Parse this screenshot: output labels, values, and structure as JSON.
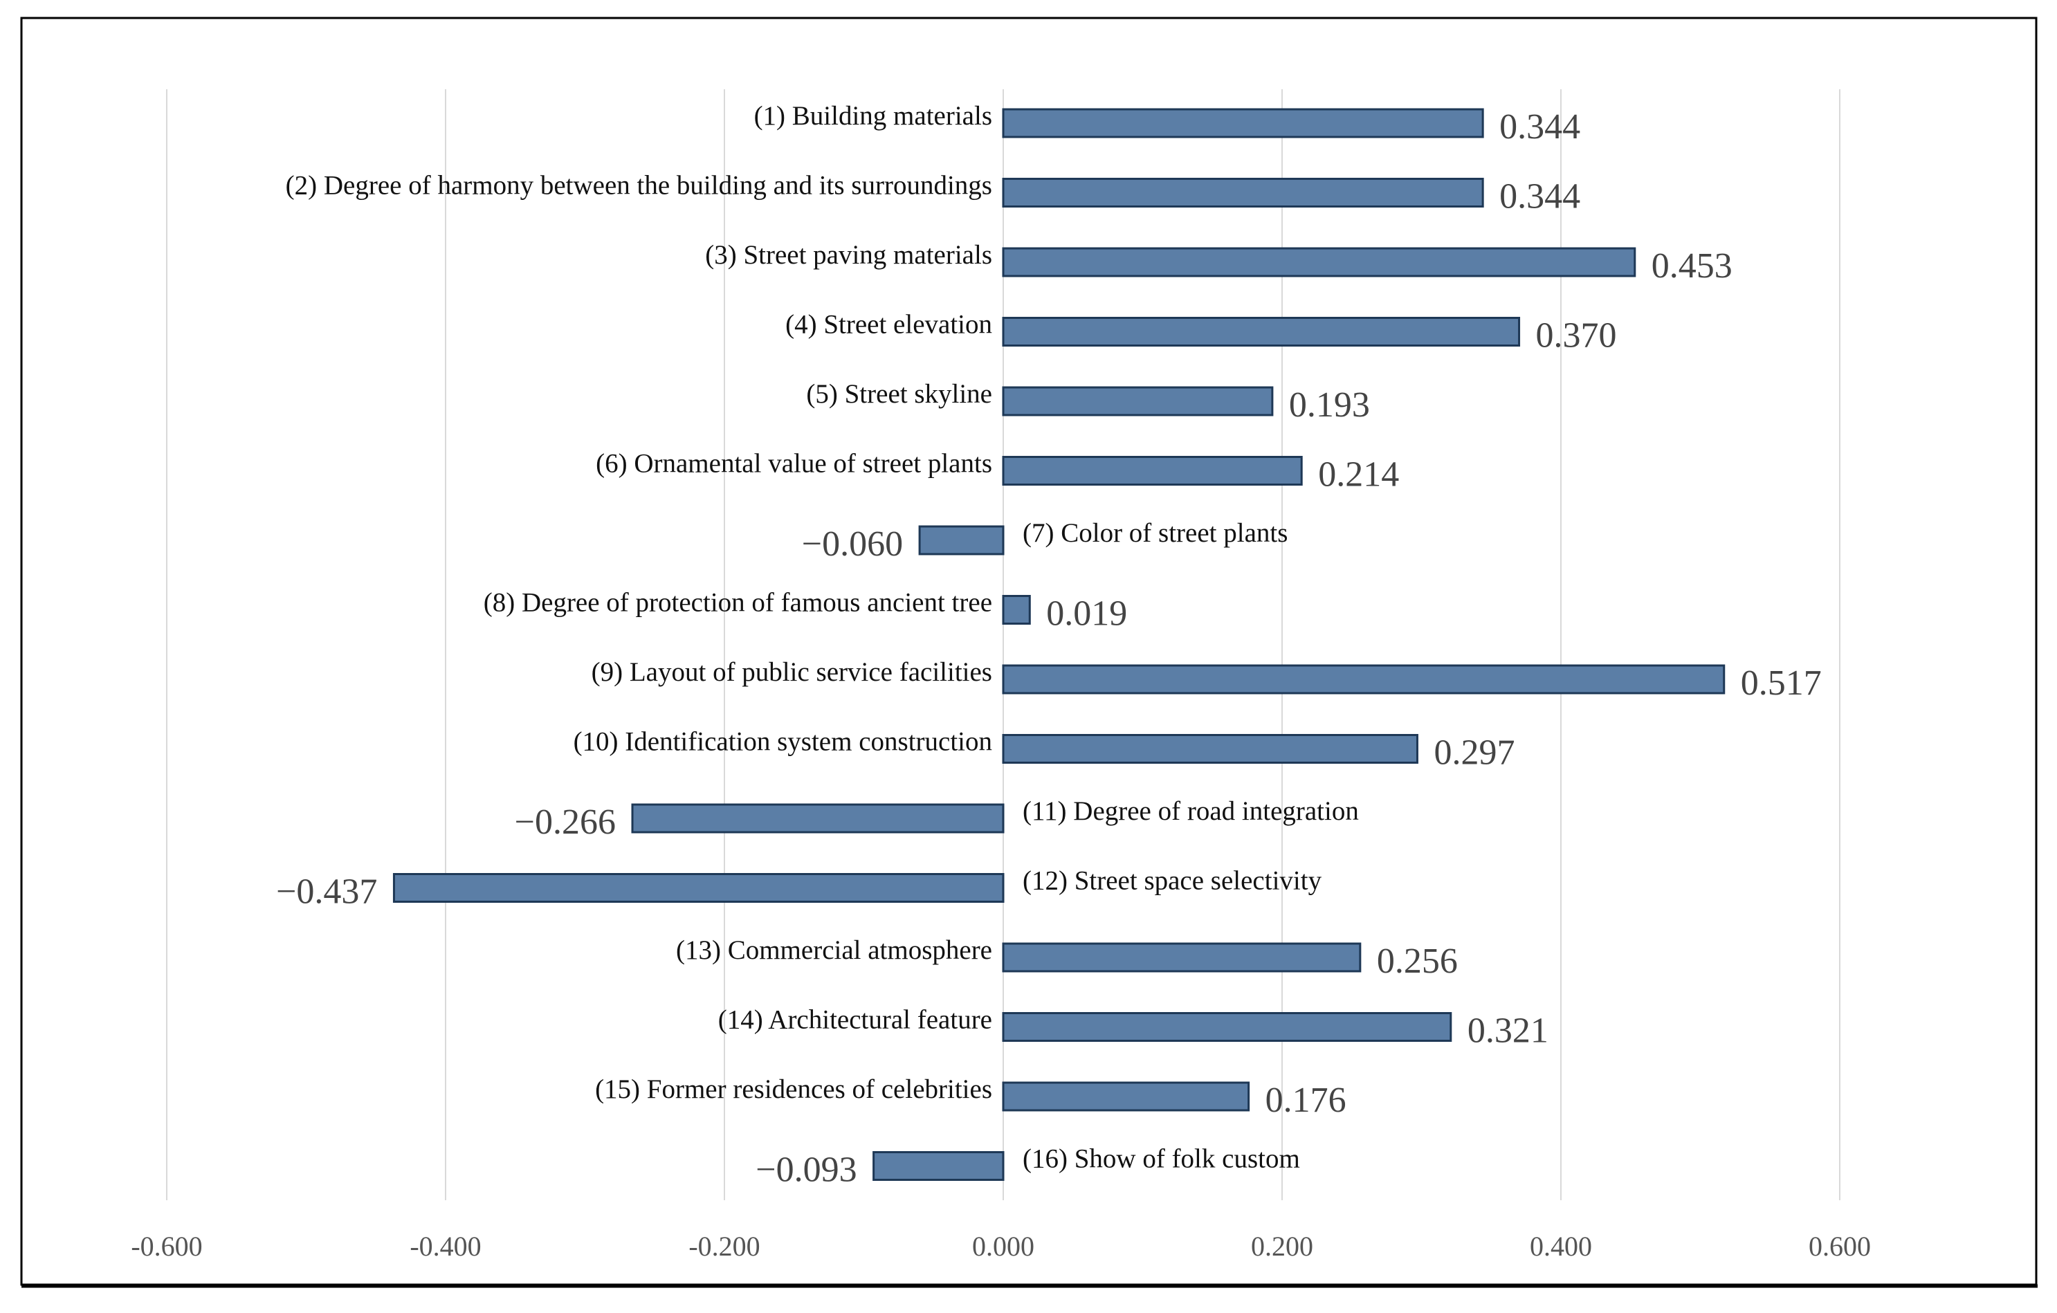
{
  "chart_data": {
    "type": "bar",
    "orientation": "horizontal",
    "title": "",
    "xlabel": "",
    "ylabel": "",
    "xlim": [
      -0.6,
      0.6
    ],
    "xticks": [
      -0.6,
      -0.4,
      -0.2,
      0.0,
      0.2,
      0.4,
      0.6
    ],
    "xtick_labels": [
      "-0.600",
      "-0.400",
      "-0.200",
      "0.000",
      "0.200",
      "0.400",
      "0.600"
    ],
    "grid": "vertical",
    "legend": "none",
    "categories": [
      "(1) Building materials",
      "(2) Degree of harmony between  the building and its surroundings",
      "(3) Street paving materials",
      "(4) Street elevation",
      "(5) Street skyline",
      "(6) Ornamental value of street plants",
      "(7) Color of street plants",
      "(8) Degree of protection of famous ancient tree",
      "(9) Layout of public service facilities",
      "(10) Identification system construction",
      "(11) Degree of road integration",
      "(12) Street space selectivity",
      "(13) Commercial  atmosphere",
      "(14) Architectural feature",
      "(15) Former residences of celebrities",
      "(16) Show of folk custom"
    ],
    "values": [
      0.344,
      0.344,
      0.453,
      0.37,
      0.193,
      0.214,
      -0.06,
      0.019,
      0.517,
      0.297,
      -0.266,
      -0.437,
      0.256,
      0.321,
      0.176,
      -0.093
    ],
    "value_labels": [
      "0.344",
      "0.344",
      "0.453",
      "0.370",
      "0.193",
      "0.214",
      "−0.060",
      "0.019",
      "0.517",
      "0.297",
      "−0.266",
      "−0.437",
      "0.256",
      "0.321",
      "0.176",
      "−0.093"
    ],
    "colors": {
      "bar": "#5b7ea6",
      "bar_border": "#1e3856",
      "grid": "#d9d9d9",
      "frame": "#000000"
    }
  }
}
